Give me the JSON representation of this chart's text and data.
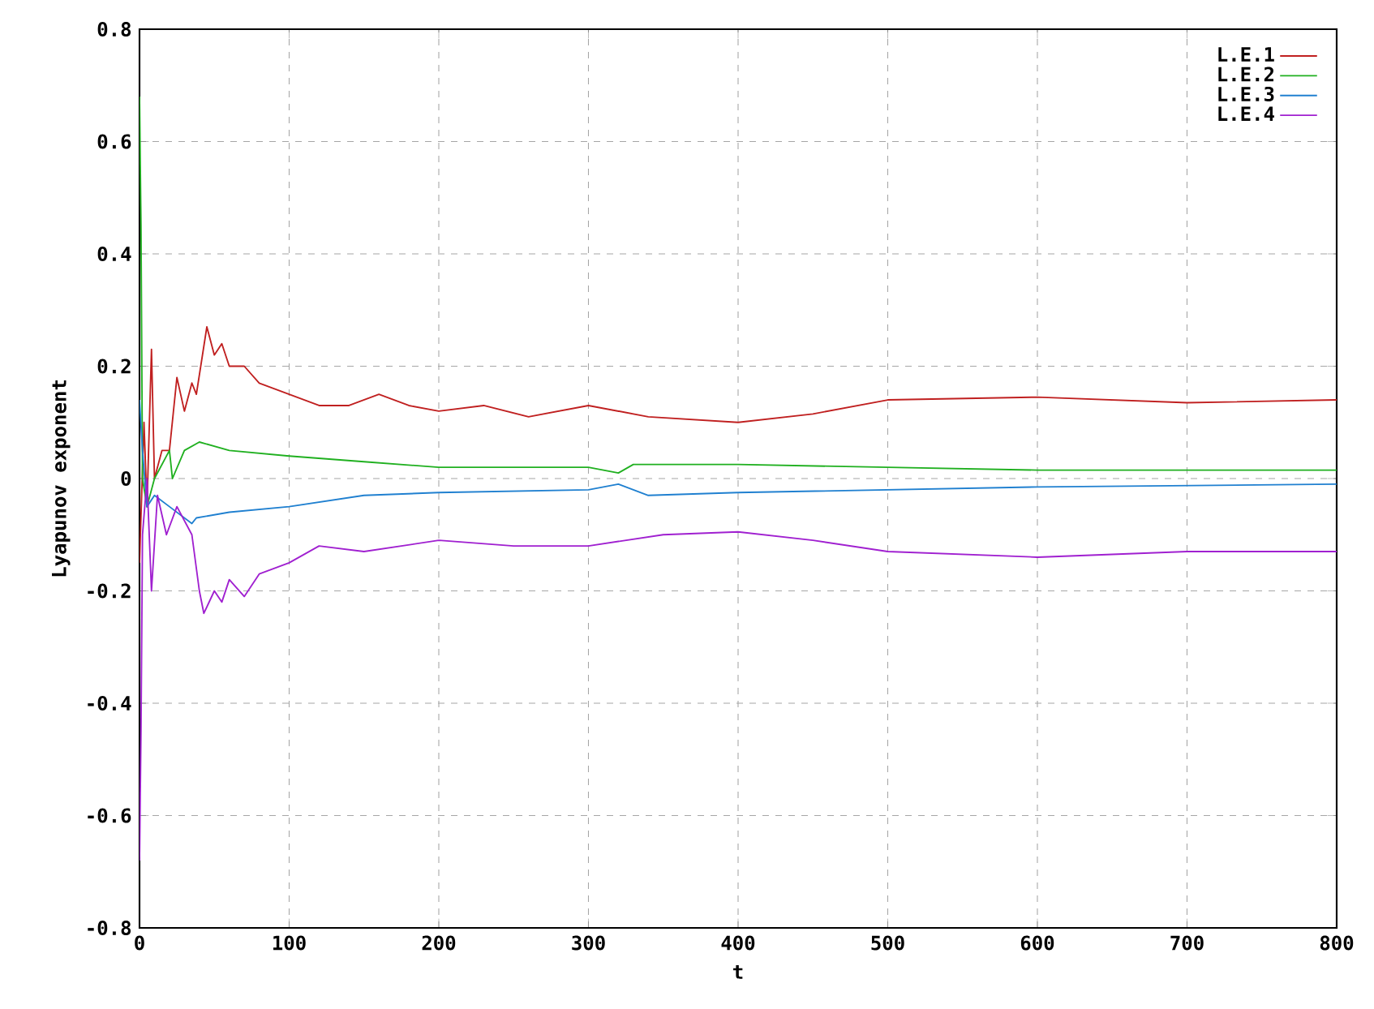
{
  "chart_data": {
    "type": "line",
    "xlabel": "t",
    "ylabel": "Lyapunov exponent",
    "xlim": [
      0,
      800
    ],
    "ylim": [
      -0.8,
      0.8
    ],
    "xticks": [
      0,
      100,
      200,
      300,
      400,
      500,
      600,
      700,
      800
    ],
    "yticks": [
      -0.8,
      -0.6,
      -0.4,
      -0.2,
      0,
      0.2,
      0.4,
      0.6,
      0.8
    ],
    "grid": true,
    "legend": "top right",
    "line_style": "solid",
    "marker": "none",
    "series": [
      {
        "name": "L.E.1",
        "color": "#c02020",
        "x": [
          0,
          3,
          5,
          8,
          10,
          15,
          20,
          25,
          30,
          35,
          38,
          45,
          50,
          55,
          60,
          70,
          80,
          100,
          120,
          140,
          160,
          180,
          200,
          230,
          260,
          300,
          340,
          400,
          450,
          500,
          600,
          700,
          800
        ],
        "values": [
          -0.15,
          0.1,
          -0.05,
          0.23,
          0.0,
          0.05,
          0.05,
          0.18,
          0.12,
          0.17,
          0.15,
          0.27,
          0.22,
          0.24,
          0.2,
          0.2,
          0.17,
          0.15,
          0.13,
          0.13,
          0.15,
          0.13,
          0.12,
          0.13,
          0.11,
          0.13,
          0.11,
          0.1,
          0.115,
          0.14,
          0.145,
          0.135,
          0.14
        ]
      },
      {
        "name": "L.E.2",
        "color": "#20b020",
        "x": [
          0,
          1,
          2,
          5,
          10,
          20,
          22,
          30,
          40,
          60,
          100,
          150,
          200,
          300,
          320,
          330,
          400,
          500,
          600,
          800
        ],
        "values": [
          0.68,
          0.45,
          0.0,
          -0.05,
          0.0,
          0.05,
          0.0,
          0.05,
          0.065,
          0.05,
          0.04,
          0.03,
          0.02,
          0.02,
          0.01,
          0.025,
          0.025,
          0.02,
          0.015,
          0.015
        ]
      },
      {
        "name": "L.E.3",
        "color": "#2080d0",
        "x": [
          0,
          2,
          5,
          10,
          20,
          35,
          38,
          60,
          100,
          150,
          200,
          300,
          320,
          340,
          400,
          500,
          600,
          800
        ],
        "values": [
          0.14,
          0.05,
          -0.05,
          -0.03,
          -0.05,
          -0.08,
          -0.07,
          -0.06,
          -0.05,
          -0.03,
          -0.025,
          -0.02,
          -0.01,
          -0.03,
          -0.025,
          -0.02,
          -0.015,
          -0.01
        ]
      },
      {
        "name": "L.E.4",
        "color": "#a020d0",
        "x": [
          0,
          1,
          2,
          5,
          8,
          12,
          18,
          25,
          35,
          40,
          43,
          50,
          55,
          60,
          70,
          80,
          100,
          120,
          150,
          200,
          250,
          300,
          350,
          400,
          450,
          500,
          600,
          700,
          800
        ],
        "values": [
          -0.68,
          -0.45,
          -0.1,
          0.0,
          -0.2,
          -0.03,
          -0.1,
          -0.05,
          -0.1,
          -0.2,
          -0.24,
          -0.2,
          -0.22,
          -0.18,
          -0.21,
          -0.17,
          -0.15,
          -0.12,
          -0.13,
          -0.11,
          -0.12,
          -0.12,
          -0.1,
          -0.095,
          -0.11,
          -0.13,
          -0.14,
          -0.13,
          -0.13
        ]
      }
    ]
  }
}
